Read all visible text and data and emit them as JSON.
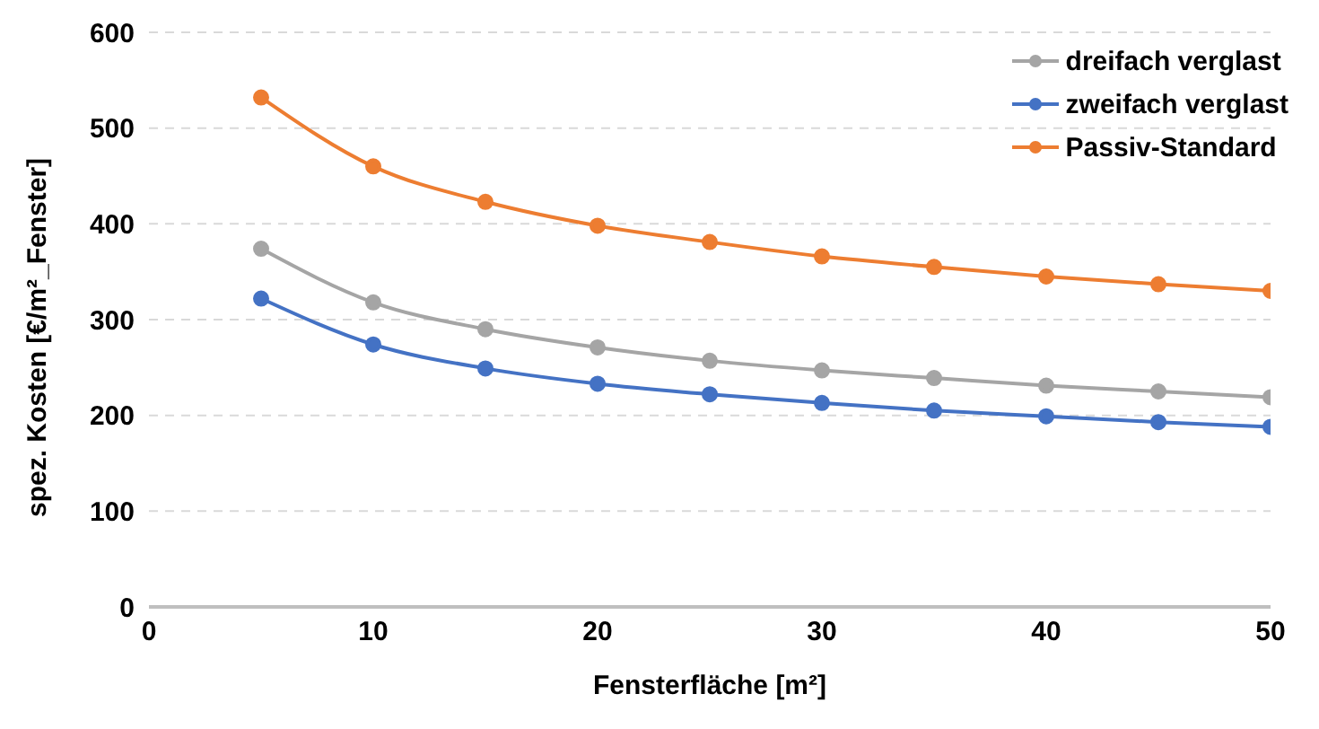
{
  "chart_data": {
    "type": "line",
    "xlabel": "Fensterfläche [m²]",
    "ylabel": "spez. Kosten [€/m²_Fenster]",
    "x": [
      5,
      10,
      15,
      20,
      25,
      30,
      35,
      40,
      45,
      50
    ],
    "series": [
      {
        "name": "dreifach verglast",
        "color": "#a5a5a5",
        "values": [
          374,
          318,
          290,
          271,
          257,
          247,
          239,
          231,
          225,
          219
        ]
      },
      {
        "name": "zweifach verglast",
        "color": "#4472c4",
        "values": [
          322,
          274,
          249,
          233,
          222,
          213,
          205,
          199,
          193,
          188
        ]
      },
      {
        "name": "Passiv-Standard",
        "color": "#ed7d31",
        "values": [
          532,
          460,
          423,
          398,
          381,
          366,
          355,
          345,
          337,
          330
        ]
      }
    ],
    "xlim": [
      0,
      50
    ],
    "xticks": [
      0,
      10,
      20,
      30,
      40,
      50
    ],
    "ylim": [
      0,
      600
    ],
    "yticks": [
      0,
      100,
      200,
      300,
      400,
      500,
      600
    ],
    "grid": "y",
    "legend": "top right",
    "marker": "circle",
    "line_style": "solid"
  }
}
